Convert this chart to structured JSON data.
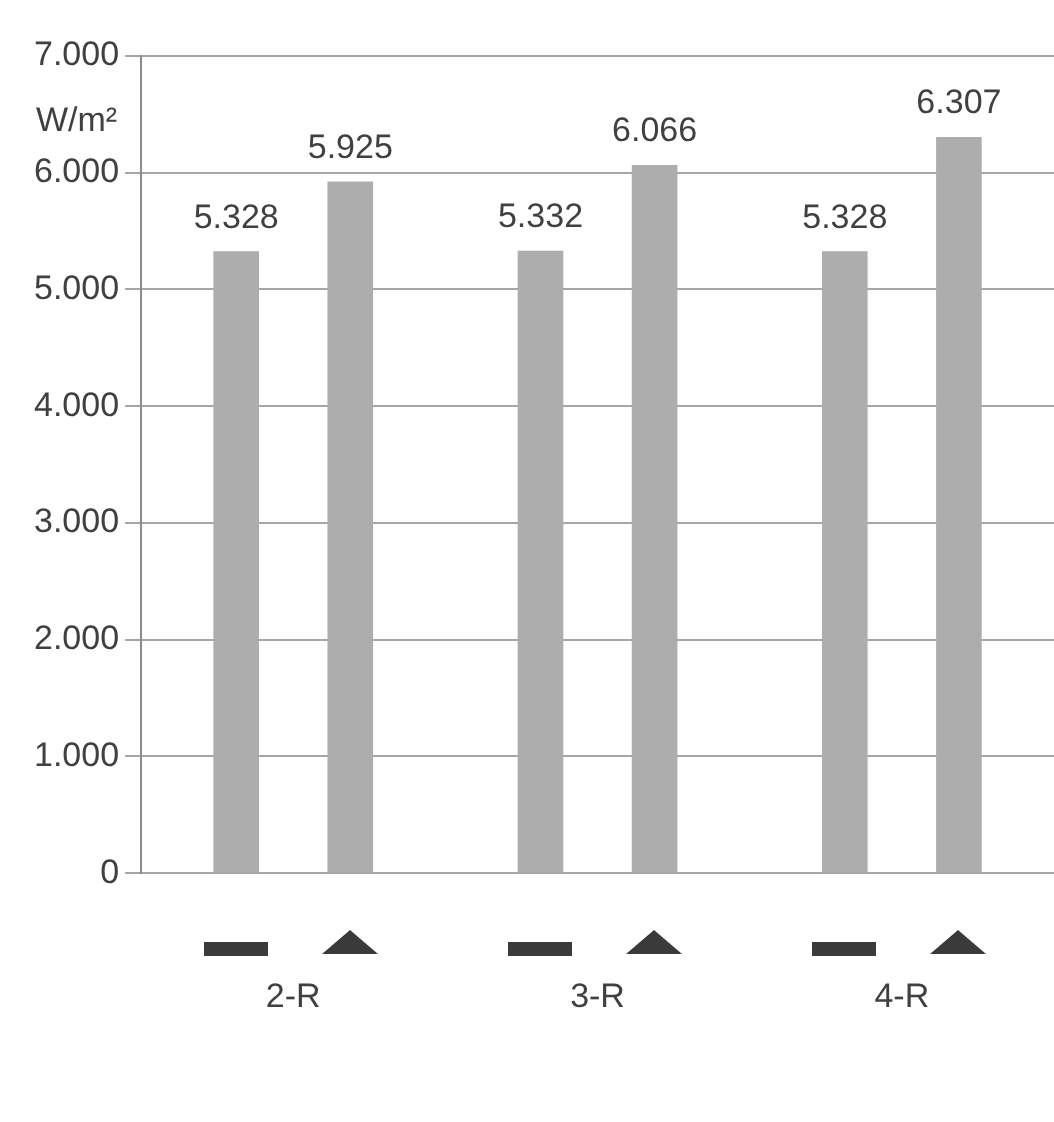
{
  "chart_data": {
    "type": "bar",
    "ylabel": "W/m²",
    "categories": [
      "2-R",
      "3-R",
      "4-R"
    ],
    "series": [
      {
        "color": "#adadad",
        "values": [
          5328,
          5332,
          5328
        ],
        "value_labels": [
          "5.328",
          "5.332",
          "5.328"
        ]
      },
      {
        "color": "#adadad",
        "values": [
          5925,
          6066,
          6307
        ],
        "value_labels": [
          "5.925",
          "6.066",
          "6.307"
        ]
      }
    ],
    "ylim": [
      0,
      7000
    ],
    "yticks": [
      {
        "value": 0,
        "label": "0"
      },
      {
        "value": 1000,
        "label": "1.000"
      },
      {
        "value": 2000,
        "label": "2.000"
      },
      {
        "value": 3000,
        "label": "3.000"
      },
      {
        "value": 4000,
        "label": "4.000"
      },
      {
        "value": 5000,
        "label": "5.000"
      },
      {
        "value": 6000,
        "label": "6.000"
      },
      {
        "value": 7000,
        "label": "7.000"
      }
    ],
    "grid": "y",
    "legend": false
  }
}
